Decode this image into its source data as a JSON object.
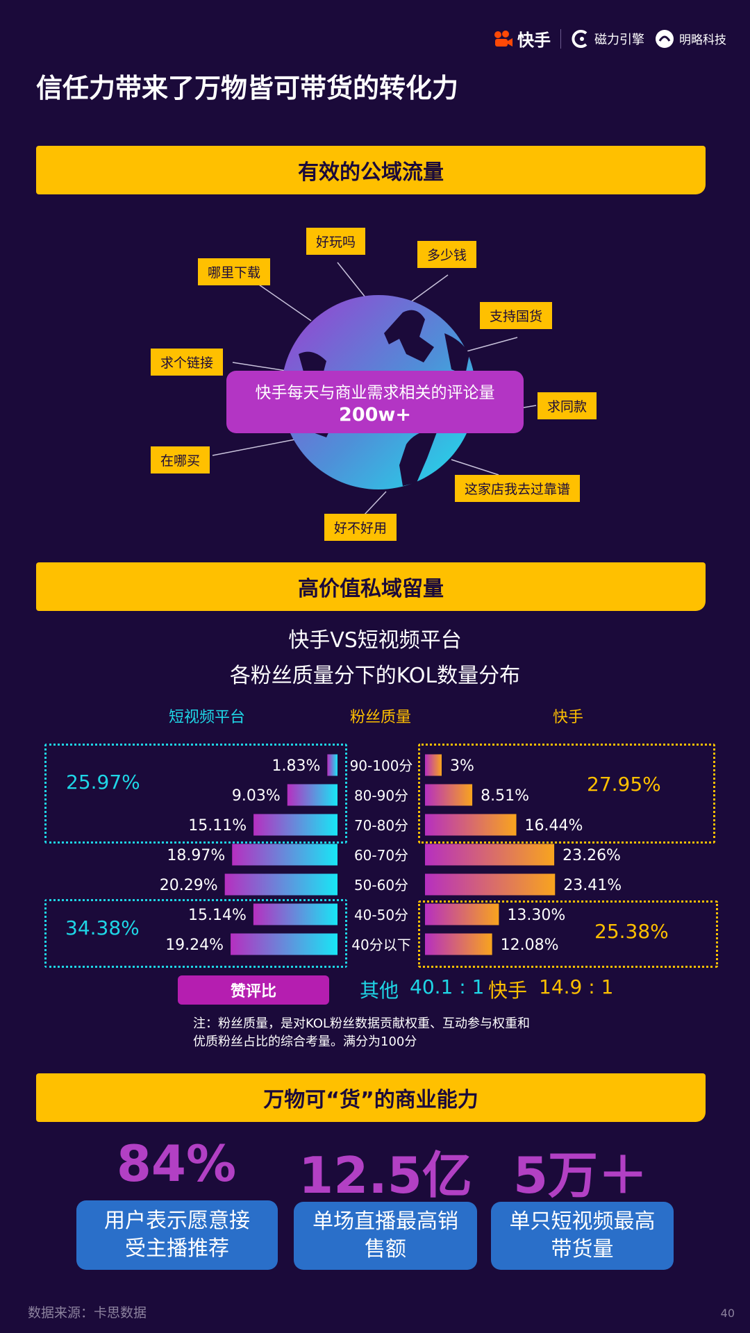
{
  "header": {
    "logos": [
      {
        "name": "快手",
        "icon": "kuaishou-logo-icon"
      },
      {
        "name": "磁力引擎",
        "icon": "cili-engine-logo-icon"
      },
      {
        "name": "明略科技",
        "icon": "mininglamp-logo-icon"
      }
    ]
  },
  "page_title": "信任力带来了万物皆可带货的转化力",
  "section1": {
    "banner": "有效的公域流量",
    "tags": [
      "好玩吗",
      "多少钱",
      "哪里下载",
      "支持国货",
      "求个链接",
      "求同款",
      "在哪买",
      "这家店我去过靠谱",
      "好不好用"
    ],
    "comment_label": "快手每天与商业需求相关的评论量",
    "comment_value": "200w+"
  },
  "section2": {
    "banner": "高价值私域留量",
    "title_line1": "快手VS短视频平台",
    "title_line2": "各粉丝质量分下的KOL数量分布",
    "col_left": "短视频平台",
    "col_mid": "粉丝质量",
    "col_right": "快手",
    "group_left_top": "25.97%",
    "group_left_bottom": "34.38%",
    "group_right_top": "27.95%",
    "group_right_bottom": "25.38%",
    "ratio_label": "赞评比",
    "ratio_other_label": "其他",
    "ratio_other_value": "40.1 : 1",
    "ratio_ks_label": "快手",
    "ratio_ks_value": "14.9 : 1",
    "note_line1": "注：粉丝质量，是对KOL粉丝数据贡献权重、互动参与权重和",
    "note_line2": "优质粉丝占比的综合考量。满分为100分"
  },
  "chart_data": {
    "type": "bar",
    "orientation": "horizontal-butterfly",
    "categories": [
      "90-100分",
      "80-90分",
      "70-80分",
      "60-70分",
      "50-60分",
      "40-50分",
      "40分以下"
    ],
    "series": [
      {
        "name": "短视频平台",
        "values": [
          1.83,
          9.03,
          15.11,
          18.97,
          20.29,
          15.14,
          19.24
        ],
        "labels": [
          "1.83%",
          "9.03%",
          "15.11%",
          "18.97%",
          "20.29%",
          "15.14%",
          "19.24%"
        ]
      },
      {
        "name": "快手",
        "values": [
          3,
          8.51,
          16.44,
          23.26,
          23.41,
          13.3,
          12.08
        ],
        "labels": [
          "3%",
          "8.51%",
          "16.44%",
          "23.26%",
          "23.41%",
          "13.30%",
          "12.08%"
        ]
      }
    ],
    "colors": {
      "left_start": "#b62fc0",
      "left_end": "#18e6f5",
      "right_start": "#b62fc0",
      "right_end": "#f8a41e"
    }
  },
  "section3": {
    "banner": "万物可“货”的商业能力",
    "stats": [
      {
        "value": "84%",
        "label_line1": "用户表示愿意接",
        "label_line2": "受主播推荐"
      },
      {
        "value": "12.5亿",
        "label_line1": "单场直播最高销",
        "label_line2": "售额"
      },
      {
        "value": "5万＋",
        "label_line1": "单只短视频最高",
        "label_line2": "带货量"
      }
    ]
  },
  "footer": {
    "source": "数据来源：卡思数据",
    "page": "40"
  },
  "colors": {
    "background": "#1b0a3a",
    "accent_yellow": "#ffc000",
    "cyan": "#1fd6e6",
    "purple": "#b240c4",
    "blue_box": "#2a6fc9"
  }
}
